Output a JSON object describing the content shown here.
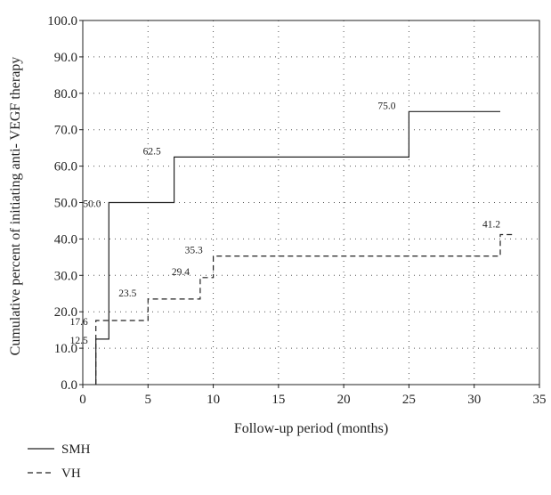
{
  "chart_data": {
    "type": "line",
    "title": "",
    "xlabel": "Follow-up period (months)",
    "ylabel": "Cumulative percent of initiating anti- VEGF therapy",
    "xlim": [
      0,
      35
    ],
    "ylim": [
      0,
      100
    ],
    "xticks": [
      "0",
      "5",
      "10",
      "15",
      "20",
      "25",
      "30",
      "35"
    ],
    "yticks": [
      "0.0",
      "10.0",
      "20.0",
      "30.0",
      "40.0",
      "50.0",
      "60.0",
      "70.0",
      "80.0",
      "90.0",
      "100.0"
    ],
    "grid": true,
    "legend_position": "bottom-left",
    "series": [
      {
        "name": "SMH",
        "style": "solid",
        "color": "#222222",
        "x": [
          1,
          1,
          2,
          2,
          7,
          7,
          25,
          25,
          32
        ],
        "y": [
          0,
          12.5,
          12.5,
          50.0,
          50.0,
          62.5,
          62.5,
          75.0,
          75.0
        ]
      },
      {
        "name": "VH",
        "style": "dashed",
        "color": "#222222",
        "x": [
          1,
          1,
          5,
          5,
          9,
          9,
          10,
          10,
          32,
          32,
          33
        ],
        "y": [
          0,
          17.6,
          17.6,
          23.5,
          23.5,
          29.4,
          29.4,
          35.3,
          35.3,
          41.2,
          41.2
        ]
      }
    ],
    "annotations": [
      {
        "text": "12.5",
        "x": 1,
        "y": 12.5,
        "series": "SMH"
      },
      {
        "text": "50.0",
        "x": 2,
        "y": 50.0,
        "series": "SMH"
      },
      {
        "text": "62.5",
        "x": 7,
        "y": 62.5,
        "series": "SMH"
      },
      {
        "text": "75.0",
        "x": 25,
        "y": 75.0,
        "series": "SMH"
      },
      {
        "text": "17.6",
        "x": 1,
        "y": 17.6,
        "series": "VH"
      },
      {
        "text": "23.5",
        "x": 5,
        "y": 23.5,
        "series": "VH"
      },
      {
        "text": "29.4",
        "x": 9,
        "y": 29.4,
        "series": "VH"
      },
      {
        "text": "35.3",
        "x": 10,
        "y": 35.3,
        "series": "VH"
      },
      {
        "text": "41.2",
        "x": 32,
        "y": 41.2,
        "series": "VH"
      }
    ]
  }
}
